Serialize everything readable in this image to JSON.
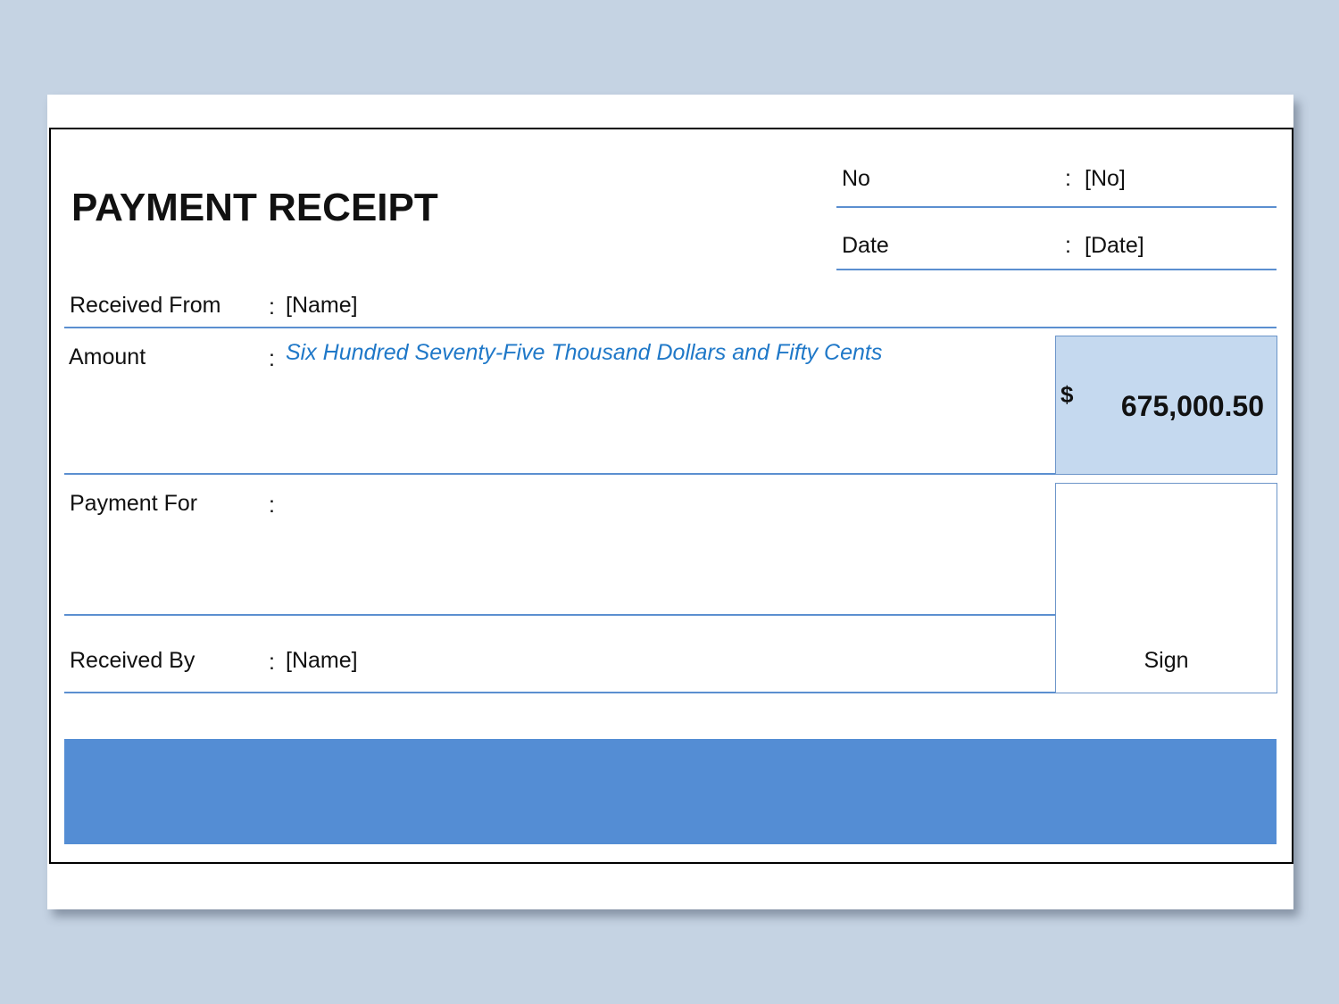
{
  "title": "PAYMENT RECEIPT",
  "no": {
    "label": "No",
    "value": "[No]"
  },
  "date": {
    "label": "Date",
    "value": "[Date]"
  },
  "separator": ":",
  "received_from": {
    "label": "Received From",
    "value": "[Name]"
  },
  "amount": {
    "label": "Amount",
    "words": "Six Hundred Seventy-Five Thousand Dollars and Fifty Cents",
    "currency": "$",
    "value": "675,000.50"
  },
  "payment_for": {
    "label": "Payment For",
    "value": ""
  },
  "received_by": {
    "label": "Received By",
    "value": "[Name]"
  },
  "sign_label": "Sign",
  "colors": {
    "background": "#c5d3e3",
    "line": "#5b8fd0",
    "amount_box": "#c5d9ef",
    "banner": "#548dd4",
    "words": "#1f78c8"
  }
}
